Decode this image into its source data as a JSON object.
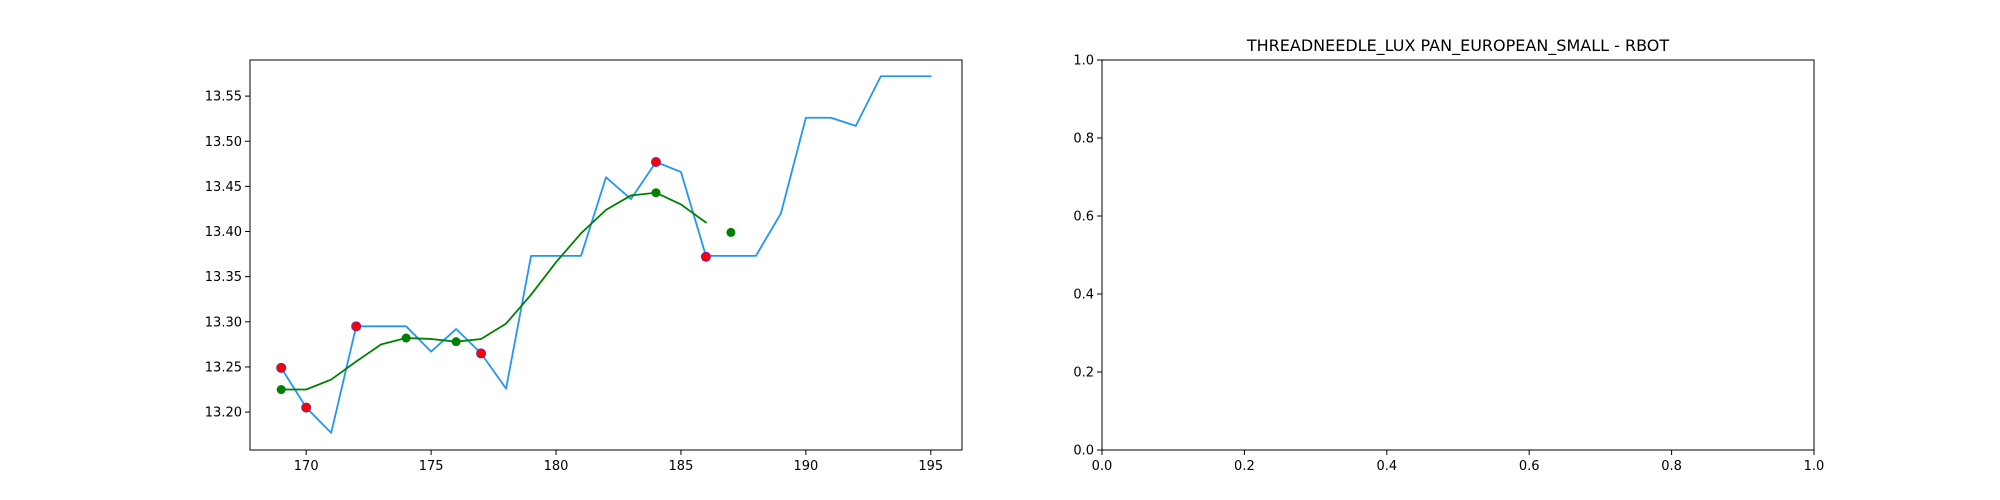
{
  "chart_data": [
    {
      "type": "line",
      "title": "",
      "xlabel": "",
      "ylabel": "",
      "xlim": [
        167.75,
        196.25
      ],
      "ylim": [
        13.158,
        13.59
      ],
      "xticks": [
        170,
        175,
        180,
        185,
        190,
        195
      ],
      "yticks": [
        13.2,
        13.25,
        13.3,
        13.35,
        13.4,
        13.45,
        13.5,
        13.55
      ],
      "ytick_format": 2,
      "grid": false,
      "colors": {
        "price": "#2196f3",
        "smooth": "#008000",
        "red_points": "#ff0000",
        "green_points": "#008000"
      },
      "series": [
        {
          "style": "line",
          "color_key": "price",
          "x": [
            169,
            170,
            171,
            172,
            173,
            174,
            175,
            176,
            177,
            178,
            179,
            180,
            181,
            182,
            183,
            184,
            185,
            186,
            187,
            188,
            189,
            190,
            191,
            192,
            193,
            194,
            195
          ],
          "y": [
            13.249,
            13.205,
            13.177,
            13.295,
            13.295,
            13.295,
            13.267,
            13.292,
            13.265,
            13.226,
            13.373,
            13.373,
            13.373,
            13.46,
            13.436,
            13.477,
            13.466,
            13.373,
            13.373,
            13.373,
            13.42,
            13.526,
            13.526,
            13.517,
            13.572,
            13.572,
            13.572
          ]
        },
        {
          "style": "line",
          "color_key": "smooth",
          "x": [
            169,
            170,
            171,
            172,
            173,
            174,
            175,
            176,
            177,
            178,
            179,
            180,
            181,
            182,
            183,
            184,
            185,
            186
          ],
          "y": [
            13.225,
            13.225,
            13.236,
            13.256,
            13.275,
            13.282,
            13.281,
            13.278,
            13.281,
            13.298,
            13.33,
            13.366,
            13.398,
            13.424,
            13.44,
            13.443,
            13.43,
            13.41
          ]
        },
        {
          "style": "scatter",
          "color_key": "red_points",
          "edge": "#7a1fa2",
          "x": [
            169,
            170,
            172,
            177,
            184,
            186
          ],
          "y": [
            13.249,
            13.205,
            13.295,
            13.265,
            13.477,
            13.372
          ]
        },
        {
          "style": "scatter",
          "color_key": "green_points",
          "x": [
            169,
            174,
            176,
            184,
            187
          ],
          "y": [
            13.225,
            13.282,
            13.278,
            13.443,
            13.399
          ]
        }
      ]
    },
    {
      "type": "line",
      "title": "THREADNEEDLE_LUX PAN_EUROPEAN_SMALL - RBOT",
      "xlabel": "",
      "ylabel": "",
      "xlim": [
        0,
        1
      ],
      "ylim": [
        0,
        1
      ],
      "xticks": [
        0.0,
        0.2,
        0.4,
        0.6,
        0.8,
        1.0
      ],
      "yticks": [
        0.0,
        0.2,
        0.4,
        0.6,
        0.8,
        1.0
      ],
      "xtick_format": 1,
      "ytick_format": 1,
      "grid": false,
      "series": []
    }
  ]
}
